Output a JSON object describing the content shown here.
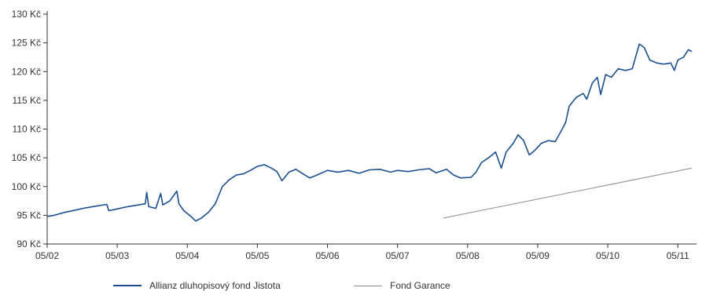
{
  "chart_data": {
    "type": "line",
    "title": "",
    "xlabel": "",
    "ylabel": "",
    "x_tick_labels": [
      "05/02",
      "05/03",
      "05/04",
      "05/05",
      "05/06",
      "05/07",
      "05/08",
      "05/09",
      "05/10",
      "05/11"
    ],
    "y_tick_labels": [
      "90 Kč",
      "95 Kč",
      "100 Kč",
      "105 Kč",
      "110 Kč",
      "115 Kč",
      "120 Kč",
      "125 Kč",
      "130 Kč"
    ],
    "y_ticks": [
      90,
      95,
      100,
      105,
      110,
      115,
      120,
      125,
      130
    ],
    "xlim": [
      2002,
      2011.2
    ],
    "ylim": [
      90,
      130
    ],
    "grid": false,
    "legend_position": "bottom",
    "series": [
      {
        "name": "Allianz dluhopisový fond Jistota",
        "color": "#1b4f8f",
        "points": [
          [
            2002.0,
            94.8
          ],
          [
            2002.1,
            95.0
          ],
          [
            2002.25,
            95.5
          ],
          [
            2002.4,
            95.9
          ],
          [
            2002.55,
            96.3
          ],
          [
            2002.7,
            96.6
          ],
          [
            2002.85,
            96.9
          ],
          [
            2002.88,
            95.8
          ],
          [
            2003.0,
            96.1
          ],
          [
            2003.15,
            96.5
          ],
          [
            2003.3,
            96.8
          ],
          [
            2003.4,
            97.0
          ],
          [
            2003.42,
            99.0
          ],
          [
            2003.45,
            96.5
          ],
          [
            2003.55,
            96.2
          ],
          [
            2003.62,
            98.8
          ],
          [
            2003.65,
            96.8
          ],
          [
            2003.75,
            97.5
          ],
          [
            2003.85,
            99.2
          ],
          [
            2003.88,
            97.0
          ],
          [
            2003.95,
            95.8
          ],
          [
            2004.05,
            94.8
          ],
          [
            2004.12,
            94.0
          ],
          [
            2004.2,
            94.5
          ],
          [
            2004.3,
            95.5
          ],
          [
            2004.4,
            97.0
          ],
          [
            2004.5,
            100.0
          ],
          [
            2004.6,
            101.2
          ],
          [
            2004.7,
            102.0
          ],
          [
            2004.8,
            102.2
          ],
          [
            2004.9,
            102.8
          ],
          [
            2005.0,
            103.5
          ],
          [
            2005.1,
            103.8
          ],
          [
            2005.2,
            103.2
          ],
          [
            2005.28,
            102.6
          ],
          [
            2005.35,
            101.0
          ],
          [
            2005.45,
            102.5
          ],
          [
            2005.55,
            103.0
          ],
          [
            2005.65,
            102.2
          ],
          [
            2005.75,
            101.5
          ],
          [
            2005.85,
            102.0
          ],
          [
            2006.0,
            102.8
          ],
          [
            2006.15,
            102.5
          ],
          [
            2006.3,
            102.8
          ],
          [
            2006.45,
            102.3
          ],
          [
            2006.6,
            102.9
          ],
          [
            2006.75,
            103.0
          ],
          [
            2006.9,
            102.5
          ],
          [
            2007.0,
            102.8
          ],
          [
            2007.15,
            102.6
          ],
          [
            2007.3,
            102.9
          ],
          [
            2007.45,
            103.1
          ],
          [
            2007.55,
            102.4
          ],
          [
            2007.7,
            103.0
          ],
          [
            2007.8,
            102.0
          ],
          [
            2007.9,
            101.5
          ],
          [
            2008.05,
            101.6
          ],
          [
            2008.12,
            102.5
          ],
          [
            2008.2,
            104.2
          ],
          [
            2008.3,
            105.0
          ],
          [
            2008.4,
            106.0
          ],
          [
            2008.48,
            103.2
          ],
          [
            2008.55,
            106.0
          ],
          [
            2008.65,
            107.5
          ],
          [
            2008.72,
            109.0
          ],
          [
            2008.8,
            108.0
          ],
          [
            2008.88,
            105.5
          ],
          [
            2008.95,
            106.2
          ],
          [
            2009.05,
            107.5
          ],
          [
            2009.15,
            108.0
          ],
          [
            2009.25,
            107.8
          ],
          [
            2009.35,
            110.0
          ],
          [
            2009.4,
            111.2
          ],
          [
            2009.45,
            114.0
          ],
          [
            2009.55,
            115.5
          ],
          [
            2009.65,
            116.2
          ],
          [
            2009.7,
            115.2
          ],
          [
            2009.78,
            118.0
          ],
          [
            2009.85,
            119.0
          ],
          [
            2009.9,
            116.0
          ],
          [
            2009.97,
            119.5
          ],
          [
            2010.05,
            119.0
          ],
          [
            2010.15,
            120.5
          ],
          [
            2010.25,
            120.2
          ],
          [
            2010.35,
            120.5
          ],
          [
            2010.45,
            124.8
          ],
          [
            2010.52,
            124.2
          ],
          [
            2010.6,
            122.0
          ],
          [
            2010.7,
            121.5
          ],
          [
            2010.8,
            121.3
          ],
          [
            2010.9,
            121.5
          ],
          [
            2010.95,
            120.2
          ],
          [
            2011.0,
            122.0
          ],
          [
            2011.08,
            122.5
          ],
          [
            2011.15,
            123.8
          ],
          [
            2011.2,
            123.5
          ]
        ]
      },
      {
        "name": "Fond Garance",
        "color": "#8c8c8c",
        "points": [
          [
            2007.65,
            94.5
          ],
          [
            2011.2,
            103.2
          ]
        ]
      }
    ]
  }
}
